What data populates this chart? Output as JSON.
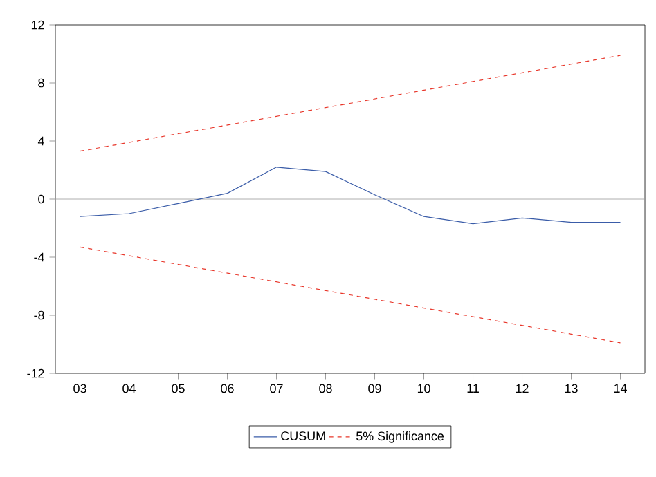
{
  "chart_data": {
    "type": "line",
    "categories": [
      "03",
      "04",
      "05",
      "06",
      "07",
      "08",
      "09",
      "10",
      "11",
      "12",
      "13",
      "14"
    ],
    "series": [
      {
        "name": "CUSUM",
        "color": "#3a5ca8",
        "line_style": "solid",
        "values": [
          -1.2,
          -1.0,
          -0.3,
          0.4,
          2.2,
          1.9,
          0.3,
          -1.2,
          -1.7,
          -1.3,
          -1.6,
          -1.6
        ]
      },
      {
        "name": "5% Significance",
        "color": "#e8372b",
        "line_style": "dashed",
        "values": [
          3.3,
          3.9,
          4.5,
          5.1,
          5.7,
          6.3,
          6.9,
          7.5,
          8.1,
          8.7,
          9.3,
          9.9
        ]
      },
      {
        "color": "#e8372b",
        "line_style": "dashed",
        "values": [
          -3.3,
          -3.9,
          -4.5,
          -5.1,
          -5.7,
          -6.3,
          -6.9,
          -7.5,
          -8.1,
          -8.7,
          -9.3,
          -9.9
        ]
      }
    ],
    "ylim": [
      -12,
      12
    ],
    "yticks": [
      -12,
      -8,
      -4,
      0,
      4,
      8,
      12
    ],
    "ref_lines": [
      {
        "axis": "y",
        "value": 0,
        "color": "#999999"
      }
    ],
    "grid": false,
    "legend": "bottom",
    "marker": "none"
  }
}
